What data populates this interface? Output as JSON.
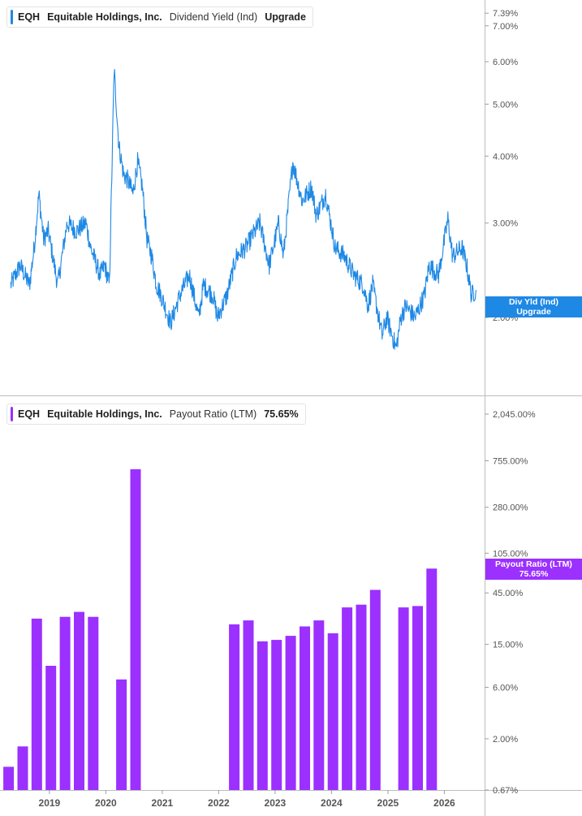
{
  "top_panel": {
    "ticker": "EQH",
    "company": "Equitable Holdings, Inc.",
    "metric": "Dividend Yield (Ind)",
    "value": "Upgrade",
    "tag_line1": "Div Yld (Ind)",
    "tag_line2": "Upgrade"
  },
  "bottom_panel": {
    "ticker": "EQH",
    "company": "Equitable Holdings, Inc.",
    "metric": "Payout Ratio (LTM)",
    "value": "75.65%",
    "tag_line1": "Payout Ratio (LTM)",
    "tag_line2": "75.65%"
  },
  "colors": {
    "line": "#1e88e5",
    "bar": "#9b30ff",
    "grid": "#d9d9d9",
    "axis_text": "#555555"
  },
  "chart_data": [
    {
      "type": "line",
      "title": "Equitable Holdings, Inc. Dividend Yield (Ind)",
      "scale": "log",
      "ylim": [
        1.6,
        7.5
      ],
      "y_tick_labels": [
        {
          "value": 7.39,
          "label": "7.39%"
        },
        {
          "value": 7.0,
          "label": "7.00%"
        },
        {
          "value": 6.0,
          "label": "6.00%"
        },
        {
          "value": 5.0,
          "label": "5.00%"
        },
        {
          "value": 4.0,
          "label": "4.00%"
        },
        {
          "value": 3.0,
          "label": "3.00%"
        },
        {
          "value": 2.0,
          "label": "2.00%"
        }
      ],
      "series": [
        {
          "x": [
            "2018-05",
            "2018-07",
            "2018-09",
            "2018-10",
            "2018-11",
            "2018-12",
            "2019-01",
            "2019-03",
            "2019-05",
            "2019-07",
            "2019-09",
            "2019-10",
            "2019-12",
            "2020-01",
            "2020-02",
            "2020-03",
            "2020-04",
            "2020-05",
            "2020-06",
            "2020-07",
            "2020-08",
            "2020-09",
            "2020-10",
            "2020-11",
            "2020-12",
            "2021-01",
            "2021-03",
            "2021-05",
            "2021-07",
            "2021-09",
            "2021-10",
            "2021-12",
            "2022-01",
            "2022-03",
            "2022-05",
            "2022-07",
            "2022-09",
            "2022-10",
            "2022-12",
            "2023-02",
            "2023-03",
            "2023-05",
            "2023-07",
            "2023-09",
            "2023-10",
            "2023-12",
            "2024-02",
            "2024-04",
            "2024-06",
            "2024-08",
            "2024-09",
            "2024-10",
            "2024-12",
            "2025-01",
            "2025-03",
            "2025-04",
            "2025-05",
            "2025-07",
            "2025-09",
            "2025-10",
            "2025-12",
            "2026-02",
            "2026-03",
            "2026-05",
            "2026-06",
            "2026-07",
            "2026-08"
          ],
          "values": [
            2.3,
            2.5,
            2.3,
            2.7,
            3.4,
            2.8,
            2.9,
            2.3,
            3.0,
            2.9,
            3.0,
            2.7,
            2.4,
            2.5,
            2.3,
            5.8,
            4.2,
            3.7,
            3.6,
            3.4,
            3.9,
            3.5,
            2.8,
            2.6,
            2.3,
            2.2,
            1.95,
            2.2,
            2.4,
            2.0,
            2.3,
            2.2,
            2.0,
            2.2,
            2.6,
            2.7,
            2.9,
            3.0,
            2.5,
            3.0,
            2.6,
            3.9,
            3.3,
            3.5,
            3.1,
            3.4,
            2.7,
            2.6,
            2.4,
            2.3,
            2.1,
            2.3,
            1.85,
            2.0,
            1.75,
            2.0,
            2.1,
            2.0,
            2.2,
            2.5,
            2.4,
            3.05,
            2.6,
            2.7,
            2.5,
            2.2,
            2.25
          ]
        }
      ]
    },
    {
      "type": "bar",
      "title": "Equitable Holdings, Inc. Payout Ratio (LTM)",
      "scale": "log",
      "ylim": [
        0.67,
        2045.0
      ],
      "y_tick_labels": [
        {
          "value": 2045.0,
          "label": "2,045.00%"
        },
        {
          "value": 755.0,
          "label": "755.00%"
        },
        {
          "value": 280.0,
          "label": "280.00%"
        },
        {
          "value": 105.0,
          "label": "105.00%"
        },
        {
          "value": 45.0,
          "label": "45.00%"
        },
        {
          "value": 15.0,
          "label": "15.00%"
        },
        {
          "value": 6.0,
          "label": "6.00%"
        },
        {
          "value": 2.0,
          "label": "2.00%"
        },
        {
          "value": 0.67,
          "label": "0.67%"
        }
      ],
      "x_tick_labels": [
        "2019",
        "2020",
        "2021",
        "2022",
        "2023",
        "2024",
        "2025",
        "2026"
      ],
      "series": [
        {
          "x": [
            "2018-03",
            "2018-06",
            "2018-09",
            "2018-12",
            "2019-03",
            "2019-06",
            "2019-09",
            "2019-12",
            "2020-03",
            "2020-06",
            "2020-09",
            "2020-12",
            "2021-03",
            "2021-06",
            "2021-09",
            "2021-12",
            "2022-03",
            "2022-06",
            "2022-09",
            "2022-12",
            "2023-03",
            "2023-06",
            "2023-09",
            "2023-12",
            "2024-03",
            "2024-06",
            "2024-09",
            "2024-12",
            "2025-03",
            "2025-06",
            "2025-09"
          ],
          "values": [
            1.1,
            1.7,
            26,
            9.5,
            27,
            30,
            27,
            0,
            7.1,
            630,
            0,
            0,
            0,
            0,
            0,
            0,
            23,
            25,
            16,
            16.5,
            18,
            22,
            25,
            19,
            33,
            35,
            48,
            0,
            33,
            34,
            75.65
          ]
        }
      ]
    }
  ]
}
